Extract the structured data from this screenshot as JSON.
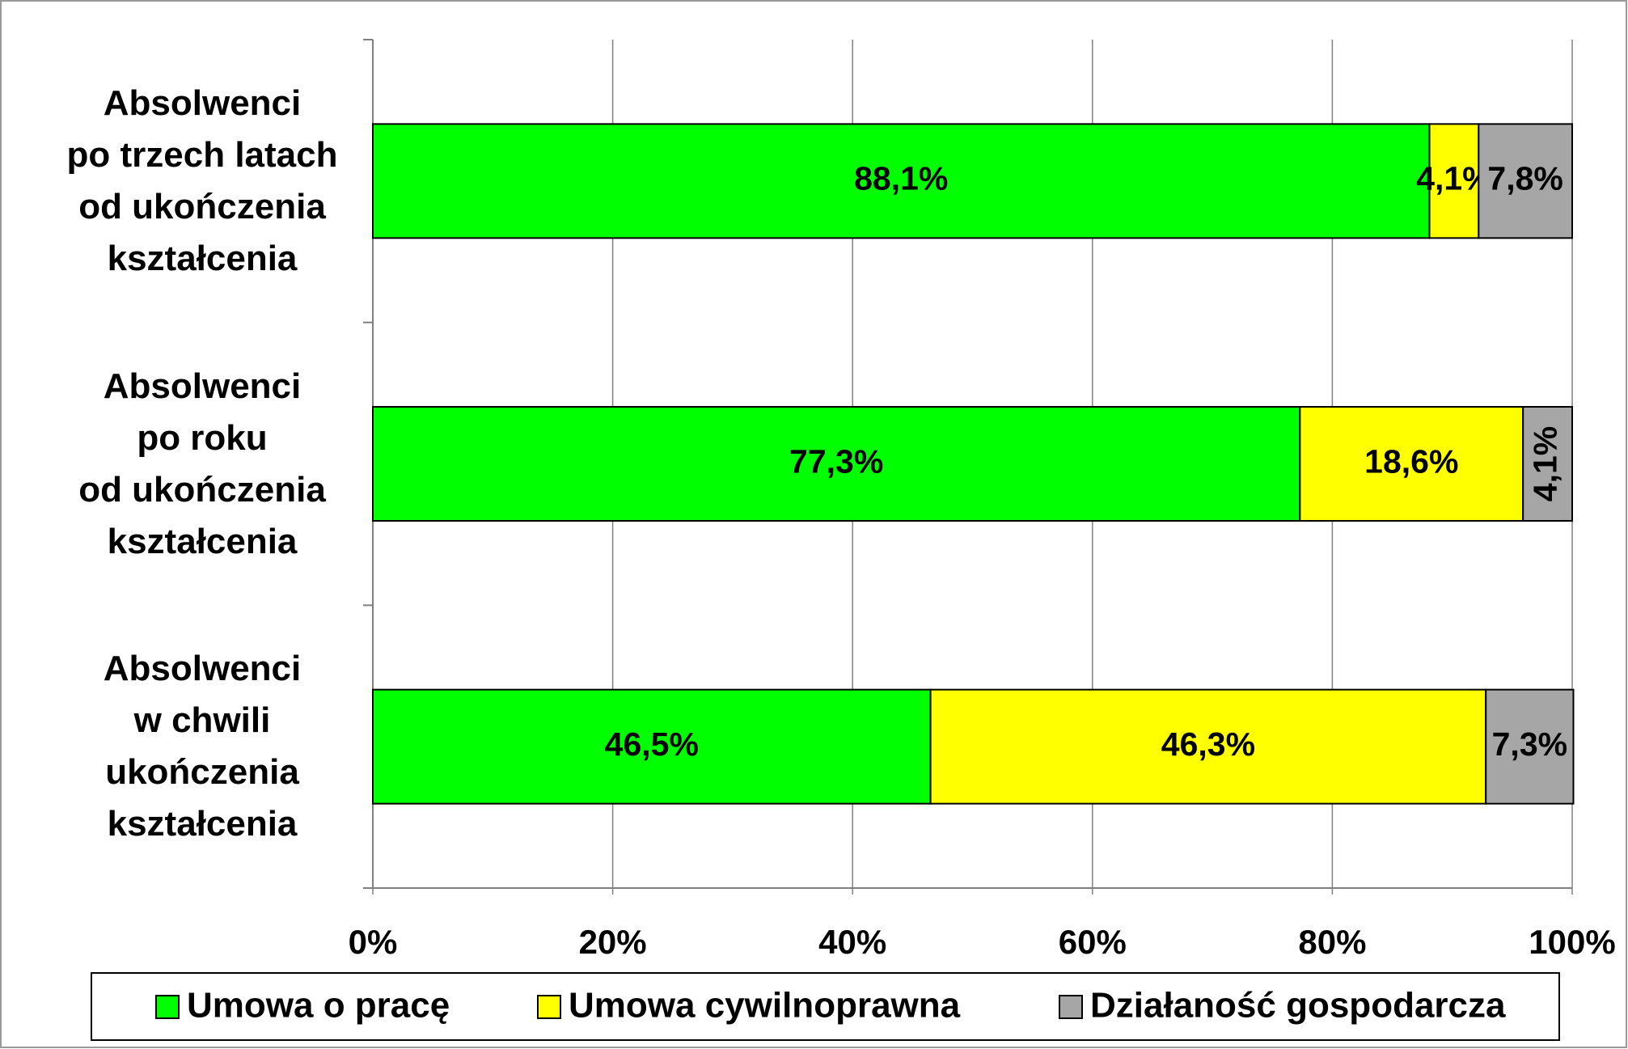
{
  "chart_data": {
    "type": "stacked_barh",
    "categories": [
      "Absolwenci\npo trzech latach\nod ukończenia\nkształcenia",
      "Absolwenci\npo roku\nod ukończenia\nkształcenia",
      "Absolwenci\nw chwili\nukończenia\nkształcenia"
    ],
    "series": [
      {
        "name": "Umowa o pracę",
        "color": "#00ff00",
        "values": [
          88.1,
          77.3,
          46.5
        ],
        "value_labels": [
          "88,1%",
          "77,3%",
          "46,5%"
        ]
      },
      {
        "name": "Umowa cywilnoprawna",
        "color": "#ffff00",
        "values": [
          4.1,
          18.6,
          46.3
        ],
        "value_labels": [
          "4,1%",
          "18,6%",
          "46,3%"
        ]
      },
      {
        "name": "Działaność gospodarcza",
        "color": "#a6a6a6",
        "values": [
          7.8,
          4.1,
          7.3
        ],
        "value_labels": [
          "7,8%",
          "4,1%",
          "7,3%"
        ]
      }
    ],
    "xlim": [
      0,
      100
    ],
    "xticks": [
      {
        "value": 0,
        "label": "0%"
      },
      {
        "value": 20,
        "label": "20%"
      },
      {
        "value": 40,
        "label": "40%"
      },
      {
        "value": 60,
        "label": "60%"
      },
      {
        "value": 80,
        "label": "80%"
      },
      {
        "value": 100,
        "label": "100%"
      }
    ],
    "grid": true,
    "legend": "bottom"
  }
}
